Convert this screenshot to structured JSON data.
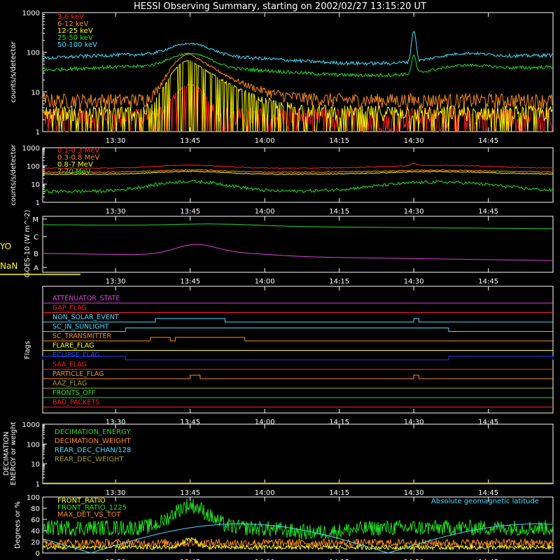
{
  "title": "HESSI Observing Summary, starting on 2002/02/27 13:15:20 UT",
  "time_ticks": [
    "13:30",
    "13:45",
    "14:00",
    "14:15",
    "14:30",
    "14:45"
  ],
  "colors": {
    "red": "#ff2020",
    "orange": "#ff8c1a",
    "yellow": "#ffff00",
    "green": "#20e020",
    "cyan": "#40e0ff",
    "magenta": "#e040e0",
    "blue": "#2040ff",
    "olive": "#a0a020"
  },
  "panels": {
    "p1": {
      "ylabel": "counts/s/detector",
      "yticks": [
        "1",
        "10",
        "100",
        "1000"
      ]
    },
    "p2": {
      "ylabel": "counts/s/detector",
      "yticks": [
        "1",
        "10",
        "100",
        "1000"
      ]
    },
    "p3": {
      "ylabel": "GOES-10 (W m^-2)",
      "yticks": [
        "A",
        "B",
        "C",
        "M"
      ],
      "left_text_1": "YO",
      "left_text_2": "NaN"
    },
    "p4": {
      "ylabel": "Flags"
    },
    "p5": {
      "ylabel_1": "DECIMATION",
      "ylabel_2": "ENERGY or weight",
      "yticks": [
        "1",
        "10",
        "100",
        "1000"
      ]
    },
    "p6": {
      "ylabel": "Degrees or %",
      "yticks": [
        "0",
        "20",
        "40",
        "60",
        "80",
        "100"
      ],
      "annotation": "Absolute geomagnetic latitude"
    }
  },
  "chart_data": [
    {
      "type": "line",
      "panel": "p1",
      "yscale": "log",
      "ylim": [
        1,
        1000
      ],
      "series": [
        {
          "name": "3-6 keV",
          "color": "#ff2020",
          "shape": "noisy",
          "baseline": 2,
          "peak": 12,
          "peak_time": "13:45"
        },
        {
          "name": "6-12 keV",
          "color": "#ff8c1a",
          "shape": "flare",
          "baseline": 6,
          "peak": 85,
          "peak_time": "13:45"
        },
        {
          "name": "12-25 keV",
          "color": "#ffff00",
          "shape": "flare",
          "baseline": 3,
          "peak": 60,
          "peak_time": "13:45"
        },
        {
          "name": "25-50 keV",
          "color": "#20e020",
          "shape": "background",
          "baseline": 35,
          "peak": 85,
          "peak_time": "13:45",
          "spike_time": "14:30",
          "spike_value": 55
        },
        {
          "name": "50-100 keV",
          "color": "#40e0ff",
          "shape": "background",
          "baseline": 70,
          "peak": 150,
          "peak_time": "13:45",
          "spike_time": "14:30",
          "spike_value": 280
        }
      ]
    },
    {
      "type": "line",
      "panel": "p2",
      "yscale": "log",
      "ylim": [
        1,
        1000
      ],
      "series": [
        {
          "name": "0.1-0.3 MeV",
          "color": "#ff2020",
          "baseline": 75,
          "peak": 110
        },
        {
          "name": "0.3-0.8 MeV",
          "color": "#ff8c1a",
          "baseline": 45,
          "peak": 60
        },
        {
          "name": "0.8-7 MeV",
          "color": "#ffff00",
          "baseline": 35,
          "peak": 50
        },
        {
          "name": "7-20 MeV",
          "color": "#20e020",
          "baseline": 4,
          "peak": 14
        }
      ]
    },
    {
      "type": "line",
      "panel": "p3",
      "series": [
        {
          "name": "",
          "color": "#20e020",
          "level_start": "upper",
          "level_end": "upper"
        },
        {
          "name": "",
          "color": "#e040e0",
          "level_start": "B",
          "peak_time": "13:45"
        }
      ]
    },
    {
      "type": "flags",
      "panel": "p4",
      "flags": [
        {
          "name": "ATTENUATOR_STATE",
          "color": "#e040e0"
        },
        {
          "name": "GAP_FLAG",
          "color": "#ff2020"
        },
        {
          "name": "NON_SOLAR_EVENT",
          "color": "#40e0ff"
        },
        {
          "name": "SC_IN_SUNLIGHT",
          "color": "#40e0ff"
        },
        {
          "name": "SC_TRANSMITTER",
          "color": "#ff8c1a"
        },
        {
          "name": "FLARE_FLAG",
          "color": "#ffff00"
        },
        {
          "name": "ECLIPSE_FLAG",
          "color": "#2040ff"
        },
        {
          "name": "SAA_FLAG",
          "color": "#ff2020"
        },
        {
          "name": "PARTICLE_FLAG",
          "color": "#ff8c1a"
        },
        {
          "name": "AAZ_FLAG",
          "color": "#a0a020"
        },
        {
          "name": "FRONTS_OFF",
          "color": "#20e020"
        },
        {
          "name": "BAD_PACKETS",
          "color": "#ff2020"
        }
      ]
    },
    {
      "type": "line",
      "panel": "p5",
      "yscale": "log",
      "ylim": [
        1,
        1000
      ],
      "series": [
        {
          "name": "DECIMATION_ENERGY",
          "color": "#20e020"
        },
        {
          "name": "DECIMATION_WEIGHT",
          "color": "#ff8c1a"
        },
        {
          "name": "REAR_DEC_CHAN/128",
          "color": "#40e0ff"
        },
        {
          "name": "REAR_DEC_WEIGHT",
          "color": "#a0a020"
        }
      ]
    },
    {
      "type": "line",
      "panel": "p6",
      "ylim": [
        0,
        100
      ],
      "series": [
        {
          "name": "FRONT_RATIO",
          "color": "#ffff00",
          "baseline": 10,
          "peak": 25
        },
        {
          "name": "FRONT_RATIO_1225",
          "color": "#20e020",
          "baseline": 45,
          "peak": 85
        },
        {
          "name": "MAX_DET_VS_TOT",
          "color": "#ff8c1a",
          "baseline": 18
        }
      ]
    }
  ]
}
